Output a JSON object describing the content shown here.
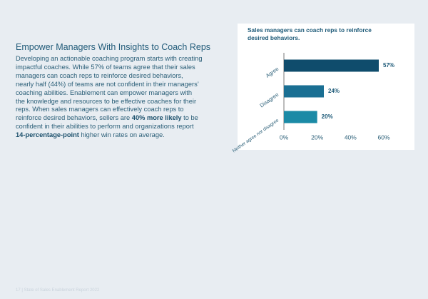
{
  "heading": "Empower Managers With Insights to Coach Reps",
  "paragraph": [
    "Developing an actionable coaching program starts with creating impactful coaches. While 57% of teams agree that their sales managers can coach reps to reinforce desired behaviors, nearly half (44%) of teams are not confident in their managers’ coaching abilities. Enablement can empower managers with the knowledge and resources to be effective coaches for their reps. When sales managers can effectively coach reps to reinforce desired behaviors, sellers are ",
    "40% more likely",
    " to be confident in their abilities to perform and organizations report ",
    "14-percentage-point",
    " higher win rates on average."
  ],
  "footer": "17 | State of Sales Enablement Report 2022",
  "chart_data": {
    "type": "bar",
    "orientation": "horizontal",
    "title": "Sales managers can coach reps to reinforce desired behaviors.",
    "categories": [
      "Agree",
      "Disagree",
      "Neither agree nor disagree"
    ],
    "values": [
      57,
      24,
      20
    ],
    "value_labels": [
      "57%",
      "24%",
      "20%"
    ],
    "colors": [
      "#0f4c6c",
      "#1a6f93",
      "#1b8aa6"
    ],
    "xlim": [
      0,
      60
    ],
    "xticks": [
      {
        "value": 0,
        "label": "0%"
      },
      {
        "value": 20,
        "label": "20%"
      },
      {
        "value": 40,
        "label": "40%"
      },
      {
        "value": 60,
        "label": "60%"
      }
    ]
  }
}
